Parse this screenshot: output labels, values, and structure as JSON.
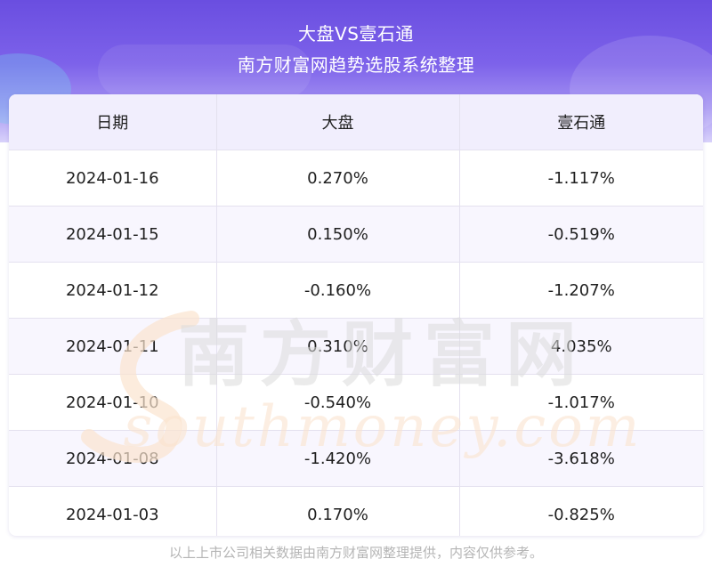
{
  "header": {
    "title": "大盘VS壹石通",
    "subtitle": "南方财富网趋势选股系统整理"
  },
  "table": {
    "columns": [
      "日期",
      "大盘",
      "壹石通"
    ],
    "rows": [
      [
        "2024-01-16",
        "0.270%",
        "-1.117%"
      ],
      [
        "2024-01-15",
        "0.150%",
        "-0.519%"
      ],
      [
        "2024-01-12",
        "-0.160%",
        "-1.207%"
      ],
      [
        "2024-01-11",
        "0.310%",
        "4.035%"
      ],
      [
        "2024-01-10",
        "-0.540%",
        "-1.017%"
      ],
      [
        "2024-01-08",
        "-1.420%",
        "-3.618%"
      ],
      [
        "2024-01-03",
        "0.170%",
        "-0.825%"
      ]
    ]
  },
  "watermark": {
    "cn": "南方财富网",
    "en": "southmoney.com"
  },
  "footer": {
    "note": "以上上市公司相关数据由南方财富网整理提供，内容仅供参考。"
  },
  "colors": {
    "header_top": "#6a4ee0",
    "header_bottom": "#d9d2fb",
    "table_header_bg": "#f1eefd",
    "watermark_cn": "#dcdcdc",
    "watermark_en": "#fbe4cf"
  }
}
